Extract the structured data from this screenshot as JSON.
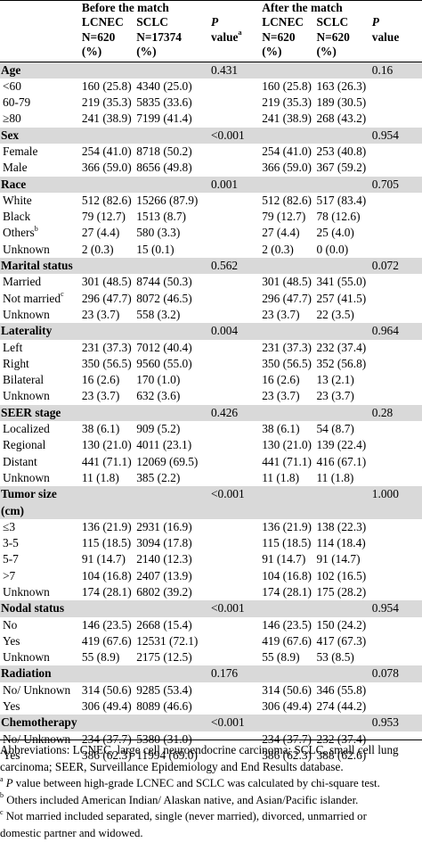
{
  "header": {
    "before": "Before the match",
    "after": "After the match",
    "lcnec_label": "LCNEC",
    "sclc_label": "SCLC",
    "n_before_lcnec": "N=620",
    "n_before_sclc": "N=17374",
    "n_after_lcnec": "N=620",
    "n_after_sclc": "N=620",
    "pct": "(%)",
    "p_italic": "P",
    "p_value": "value",
    "p_sup": "a"
  },
  "sections": [
    {
      "title": "Age",
      "p_before": "0.431",
      "p_after": "0.16",
      "rows": [
        {
          "label": "<60",
          "b1": "160 (25.8)",
          "b2": "4340 (25.0)",
          "a1": "160 (25.8)",
          "a2": "163 (26.3)"
        },
        {
          "label": "60-79",
          "b1": "219 (35.3)",
          "b2": "5835 (33.6)",
          "a1": "219 (35.3)",
          "a2": "189 (30.5)"
        },
        {
          "label": "≥80",
          "b1": "241 (38.9)",
          "b2": "7199 (41.4)",
          "a1": "241 (38.9)",
          "a2": "268 (43.2)"
        }
      ]
    },
    {
      "title": "Sex",
      "p_before": "<0.001",
      "p_after": "0.954",
      "rows": [
        {
          "label": "Female",
          "b1": "254 (41.0)",
          "b2": "8718 (50.2)",
          "a1": "254 (41.0)",
          "a2": "253 (40.8)"
        },
        {
          "label": "Male",
          "b1": "366 (59.0)",
          "b2": "8656 (49.8)",
          "a1": "366 (59.0)",
          "a2": "367 (59.2)"
        }
      ]
    },
    {
      "title": "Race",
      "p_before": "0.001",
      "p_after": "0.705",
      "rows": [
        {
          "label": "White",
          "b1": "512 (82.6)",
          "b2": "15266 (87.9)",
          "a1": "512 (82.6)",
          "a2": "517 (83.4)"
        },
        {
          "label": "Black",
          "b1": "79 (12.7)",
          "b2": "1513 (8.7)",
          "a1": "79 (12.7)",
          "a2": "78 (12.6)"
        },
        {
          "label": "Others",
          "sup": "b",
          "b1": "27 (4.4)",
          "b2": "580 (3.3)",
          "a1": "27 (4.4)",
          "a2": "25 (4.0)"
        },
        {
          "label": "Unknown",
          "b1": "2 (0.3)",
          "b2": "15 (0.1)",
          "a1": "2 (0.3)",
          "a2": "0 (0.0)"
        }
      ]
    },
    {
      "title": "Marital status",
      "p_before": "0.562",
      "p_after": "0.072",
      "rows": [
        {
          "label": "Married",
          "b1": "301 (48.5)",
          "b2": "8744 (50.3)",
          "a1": "301 (48.5)",
          "a2": "341 (55.0)"
        },
        {
          "label": "Not married",
          "sup": "c",
          "b1": "296 (47.7)",
          "b2": "8072 (46.5)",
          "a1": "296 (47.7)",
          "a2": "257 (41.5)"
        },
        {
          "label": "Unknown",
          "b1": "23 (3.7)",
          "b2": "558 (3.2)",
          "a1": "23 (3.7)",
          "a2": "22 (3.5)"
        }
      ]
    },
    {
      "title": "Laterality",
      "p_before": "0.004",
      "p_after": "0.964",
      "rows": [
        {
          "label": "Left",
          "b1": "231 (37.3)",
          "b2": "7012 (40.4)",
          "a1": "231 (37.3)",
          "a2": "232 (37.4)"
        },
        {
          "label": "Right",
          "b1": "350 (56.5)",
          "b2": "9560 (55.0)",
          "a1": "350 (56.5)",
          "a2": "352 (56.8)"
        },
        {
          "label": "Bilateral",
          "b1": "16 (2.6)",
          "b2": "170 (1.0)",
          "a1": "16 (2.6)",
          "a2": "13 (2.1)"
        },
        {
          "label": "Unknown",
          "b1": "23 (3.7)",
          "b2": "632 (3.6)",
          "a1": "23 (3.7)",
          "a2": "23 (3.7)"
        }
      ]
    },
    {
      "title": "SEER stage",
      "p_before": "0.426",
      "p_after": "0.28",
      "rows": [
        {
          "label": "Localized",
          "b1": "38 (6.1)",
          "b2": "909 (5.2)",
          "a1": "38 (6.1)",
          "a2": "54 (8.7)"
        },
        {
          "label": "Regional",
          "b1": "130 (21.0)",
          "b2": "4011 (23.1)",
          "a1": "130 (21.0)",
          "a2": "139 (22.4)"
        },
        {
          "label": "Distant",
          "b1": "441 (71.1)",
          "b2": "12069 (69.5)",
          "a1": "441 (71.1)",
          "a2": "416 (67.1)"
        },
        {
          "label": "Unknown",
          "b1": "11 (1.8)",
          "b2": "385 (2.2)",
          "a1": "11 (1.8)",
          "a2": "11 (1.8)"
        }
      ]
    },
    {
      "title": "Tumor size",
      "title2": "(cm)",
      "p_before": "<0.001",
      "p_after": "1.000",
      "rows": [
        {
          "label": "≤3",
          "b1": "136 (21.9)",
          "b2": "2931 (16.9)",
          "a1": "136 (21.9)",
          "a2": "138 (22.3)"
        },
        {
          "label": "3-5",
          "b1": "115 (18.5)",
          "b2": "3094 (17.8)",
          "a1": "115 (18.5)",
          "a2": "114 (18.4)"
        },
        {
          "label": "5-7",
          "b1": "91 (14.7)",
          "b2": "2140 (12.3)",
          "a1": "91 (14.7)",
          "a2": "91 (14.7)"
        },
        {
          "label": ">7",
          "b1": "104 (16.8)",
          "b2": "2407 (13.9)",
          "a1": "104 (16.8)",
          "a2": "102 (16.5)"
        },
        {
          "label": "Unknown",
          "b1": "174 (28.1)",
          "b2": "6802 (39.2)",
          "a1": "174 (28.1)",
          "a2": "175 (28.2)"
        }
      ]
    },
    {
      "title": "Nodal status",
      "p_before": "<0.001",
      "p_after": "0.954",
      "rows": [
        {
          "label": "No",
          "b1": "146 (23.5)",
          "b2": "2668 (15.4)",
          "a1": "146 (23.5)",
          "a2": "150 (24.2)"
        },
        {
          "label": "Yes",
          "b1": "419 (67.6)",
          "b2": "12531 (72.1)",
          "a1": "419 (67.6)",
          "a2": "417 (67.3)"
        },
        {
          "label": "Unknown",
          "b1": "55 (8.9)",
          "b2": "2175 (12.5)",
          "a1": "55 (8.9)",
          "a2": "53 (8.5)"
        }
      ]
    },
    {
      "title": "Radiation",
      "p_before": "0.176",
      "p_after": "0.078",
      "rows": [
        {
          "label": "No/ Unknown",
          "b1": "314 (50.6)",
          "b2": "9285 (53.4)",
          "a1": "314 (50.6)",
          "a2": "346 (55.8)"
        },
        {
          "label": "Yes",
          "b1": "306 (49.4)",
          "b2": "8089 (46.6)",
          "a1": "306 (49.4)",
          "a2": "274 (44.2)"
        }
      ]
    },
    {
      "title": "Chemotherapy",
      "p_before": "<0.001",
      "p_after": "0.953",
      "rows": [
        {
          "label": "No/ Unknown",
          "b1": "234 (37.7)",
          "b2": "5380 (31.0)",
          "a1": "234 (37.7)",
          "a2": "232 (37.4)"
        },
        {
          "label": "Yes",
          "b1": "386 (62.3)",
          "b2": "11994 (69.0)",
          "a1": "386 (62.3)",
          "a2": "388 (62.6)"
        }
      ]
    }
  ],
  "notes": {
    "abbrev_1": "Abbreviations: LCNEC, large cell neuroendocrine carcinoma; SCLC, small cell lung",
    "abbrev_2": "carcinoma; SEER, Surveillance Epidemiology and End Results database.",
    "a_sup": "a",
    "a_italic": "P",
    "a_text": " value between high-grade LCNEC and SCLC was calculated by chi-square test.",
    "b_sup": "b",
    "b_text": " Others included American Indian/ Alaskan native, and Asian/Pacific islander.",
    "c_sup": "c",
    "c_text_1": " Not married included separated, single (never married), divorced, unmarried or",
    "c_text_2": "domestic partner and widowed."
  }
}
